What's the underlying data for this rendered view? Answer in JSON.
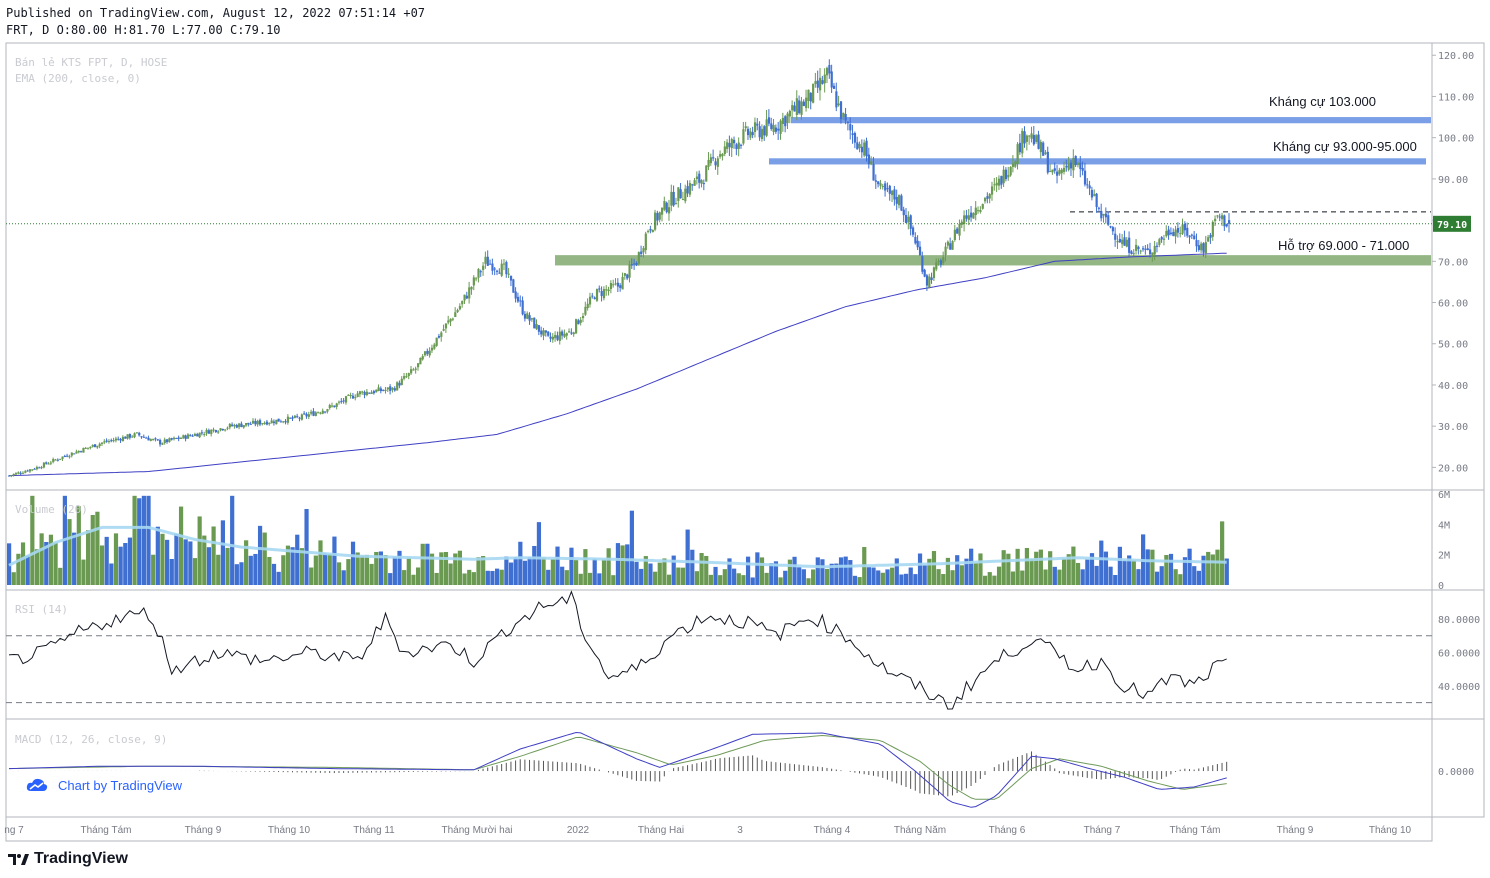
{
  "header": {
    "published": "Published on TradingView.com, August 12, 2022 07:51:14 +07",
    "ohlc": "FRT, D O:80.00 H:81.70 L:77.00 C:79.10"
  },
  "legend": {
    "symbol": "Bán lẻ KTS FPT, D, HOSE",
    "ema": "EMA (200, close, 0)",
    "volume": "Volume (20)",
    "rsi": "RSI (14)",
    "macd": "MACD (12, 26, close, 9)"
  },
  "price_axis": {
    "ticks": [
      "120.00",
      "110.00",
      "100.00",
      "90.00",
      "80.00",
      "70.00",
      "60.00",
      "50.00",
      "40.00",
      "30.00",
      "20.00"
    ],
    "last_price_label": "79.10"
  },
  "volume_axis": {
    "ticks": [
      "6M",
      "4M",
      "2M",
      "0"
    ]
  },
  "rsi_axis": {
    "ticks": [
      "80.0000",
      "60.0000",
      "40.0000"
    ]
  },
  "macd_axis": {
    "ticks": [
      "0.0000"
    ]
  },
  "time_axis": {
    "labels": [
      "ng 7",
      "Tháng Tám",
      "Tháng 9",
      "Tháng 10",
      "Tháng 11",
      "Tháng Mười hai",
      "2022",
      "Tháng Hai",
      "3",
      "Tháng 4",
      "Tháng Năm",
      "Tháng 6",
      "Tháng 7",
      "Tháng Tám",
      "Tháng 9",
      "Tháng 10"
    ]
  },
  "annotations": {
    "resistance_1": "Kháng cự 103.000",
    "resistance_2": "Kháng cự 93.000-95.000",
    "support": "Hỗ trợ 69.000 - 71.000"
  },
  "badge": {
    "text": "Chart by TradingView"
  },
  "footer": {
    "brand": "TradingView"
  },
  "colors": {
    "up_candle": "#6a9a52",
    "down_candle": "#3e6fd1",
    "ema": "#3f3fc4",
    "resistance_zone": "#7a9fe6",
    "support_zone": "#93b684",
    "volume_ma": "#a6d8f2",
    "rsi_line": "#131722",
    "macd_line": "#3f3fc4",
    "signal_line": "#6f9a5a",
    "last_price_bg": "#2e7d32"
  },
  "chart_data": {
    "type": "candlestick",
    "symbol": "FRT",
    "interval": "D",
    "exchange": "HOSE",
    "last": {
      "open": 80.0,
      "high": 81.7,
      "low": 77.0,
      "close": 79.1
    },
    "price_range": [
      15,
      122
    ],
    "zones": [
      {
        "label": "Kháng cự 103.000",
        "low": 103.5,
        "high": 105.0
      },
      {
        "label": "Kháng cự 93.000-95.000",
        "low": 93.5,
        "high": 95.0
      },
      {
        "label": "Hỗ trợ 69.000 - 71.000",
        "low": 69.0,
        "high": 71.5
      }
    ],
    "dashed_level": 82.0,
    "price_keypoints": [
      [
        0,
        18
      ],
      [
        12,
        20
      ],
      [
        25,
        23
      ],
      [
        40,
        26
      ],
      [
        55,
        28
      ],
      [
        65,
        26
      ],
      [
        80,
        28
      ],
      [
        95,
        30
      ],
      [
        110,
        31
      ],
      [
        125,
        32
      ],
      [
        140,
        35
      ],
      [
        150,
        38
      ],
      [
        165,
        39
      ],
      [
        175,
        44
      ],
      [
        185,
        52
      ],
      [
        195,
        60
      ],
      [
        205,
        70
      ],
      [
        213,
        68
      ],
      [
        222,
        57
      ],
      [
        232,
        51
      ],
      [
        242,
        53
      ],
      [
        252,
        62
      ],
      [
        262,
        64
      ],
      [
        270,
        70
      ],
      [
        275,
        78
      ],
      [
        285,
        85
      ],
      [
        298,
        90
      ],
      [
        305,
        96
      ],
      [
        318,
        101
      ],
      [
        330,
        103
      ],
      [
        345,
        110
      ],
      [
        352,
        115
      ],
      [
        360,
        103
      ],
      [
        368,
        97
      ],
      [
        375,
        87
      ],
      [
        383,
        85
      ],
      [
        390,
        75
      ],
      [
        395,
        65
      ],
      [
        402,
        71
      ],
      [
        410,
        80
      ],
      [
        425,
        88
      ],
      [
        432,
        95
      ],
      [
        438,
        102
      ],
      [
        445,
        96
      ],
      [
        450,
        90
      ],
      [
        458,
        95
      ],
      [
        465,
        87
      ],
      [
        470,
        81
      ],
      [
        480,
        74
      ],
      [
        490,
        72
      ],
      [
        500,
        78
      ],
      [
        507,
        77
      ],
      [
        514,
        73
      ],
      [
        520,
        81
      ],
      [
        525,
        79
      ]
    ],
    "ema200_keypoints": [
      [
        0,
        18
      ],
      [
        60,
        19
      ],
      [
        120,
        22.5
      ],
      [
        180,
        26
      ],
      [
        210,
        28
      ],
      [
        240,
        33
      ],
      [
        270,
        39
      ],
      [
        300,
        46
      ],
      [
        330,
        53
      ],
      [
        360,
        59
      ],
      [
        390,
        63
      ],
      [
        420,
        66
      ],
      [
        450,
        70
      ],
      [
        480,
        71
      ],
      [
        525,
        72
      ]
    ],
    "volume_range_millions": [
      0,
      6
    ],
    "volume_ma_keypoints": [
      [
        0,
        1.3
      ],
      [
        20,
        2.8
      ],
      [
        40,
        3.8
      ],
      [
        60,
        3.8
      ],
      [
        80,
        3.0
      ],
      [
        100,
        2.5
      ],
      [
        150,
        1.9
      ],
      [
        200,
        1.7
      ],
      [
        220,
        1.8
      ],
      [
        260,
        1.7
      ],
      [
        300,
        1.5
      ],
      [
        350,
        1.2
      ],
      [
        400,
        1.4
      ],
      [
        430,
        1.6
      ],
      [
        460,
        1.8
      ],
      [
        490,
        1.6
      ],
      [
        525,
        1.5
      ]
    ],
    "rsi_range": [
      22,
      95
    ],
    "rsi_levels": [
      70,
      30
    ],
    "rsi_keypoints": [
      [
        0,
        55
      ],
      [
        15,
        60
      ],
      [
        30,
        72
      ],
      [
        45,
        80
      ],
      [
        60,
        84
      ],
      [
        65,
        70
      ],
      [
        70,
        50
      ],
      [
        90,
        60
      ],
      [
        110,
        55
      ],
      [
        130,
        60
      ],
      [
        150,
        55
      ],
      [
        162,
        80
      ],
      [
        170,
        60
      ],
      [
        190,
        65
      ],
      [
        200,
        55
      ],
      [
        215,
        75
      ],
      [
        230,
        88
      ],
      [
        242,
        92
      ],
      [
        248,
        70
      ],
      [
        258,
        45
      ],
      [
        270,
        50
      ],
      [
        285,
        70
      ],
      [
        300,
        82
      ],
      [
        318,
        78
      ],
      [
        330,
        70
      ],
      [
        345,
        82
      ],
      [
        360,
        70
      ],
      [
        375,
        52
      ],
      [
        390,
        40
      ],
      [
        405,
        28
      ],
      [
        415,
        43
      ],
      [
        425,
        55
      ],
      [
        440,
        68
      ],
      [
        450,
        60
      ],
      [
        460,
        50
      ],
      [
        470,
        55
      ],
      [
        480,
        40
      ],
      [
        490,
        34
      ],
      [
        500,
        45
      ],
      [
        510,
        40
      ],
      [
        520,
        52
      ],
      [
        525,
        52
      ]
    ],
    "macd_range": [
      -3.5,
      4.0
    ],
    "macd_keypoints": [
      [
        0,
        0.2
      ],
      [
        40,
        0.4
      ],
      [
        80,
        0.4
      ],
      [
        140,
        0.2
      ],
      [
        200,
        0.1
      ],
      [
        220,
        1.8
      ],
      [
        245,
        3.2
      ],
      [
        270,
        1.0
      ],
      [
        280,
        0.3
      ],
      [
        300,
        1.6
      ],
      [
        320,
        3.0
      ],
      [
        350,
        3.1
      ],
      [
        375,
        2.2
      ],
      [
        390,
        0.0
      ],
      [
        405,
        -2.5
      ],
      [
        415,
        -3.0
      ],
      [
        425,
        -2.0
      ],
      [
        440,
        1.2
      ],
      [
        450,
        1.0
      ],
      [
        465,
        0.2
      ],
      [
        480,
        -0.5
      ],
      [
        495,
        -1.5
      ],
      [
        510,
        -1.3
      ],
      [
        525,
        -0.5
      ]
    ],
    "signal_keypoints": [
      [
        0,
        0.2
      ],
      [
        60,
        0.4
      ],
      [
        140,
        0.3
      ],
      [
        200,
        0.1
      ],
      [
        220,
        1.2
      ],
      [
        245,
        2.8
      ],
      [
        270,
        1.5
      ],
      [
        285,
        0.5
      ],
      [
        305,
        1.3
      ],
      [
        325,
        2.5
      ],
      [
        350,
        2.9
      ],
      [
        375,
        2.5
      ],
      [
        392,
        0.8
      ],
      [
        405,
        -1.2
      ],
      [
        415,
        -2.3
      ],
      [
        425,
        -2.3
      ],
      [
        440,
        0.2
      ],
      [
        452,
        1.0
      ],
      [
        470,
        0.4
      ],
      [
        490,
        -0.8
      ],
      [
        505,
        -1.5
      ],
      [
        525,
        -1.0
      ]
    ]
  }
}
